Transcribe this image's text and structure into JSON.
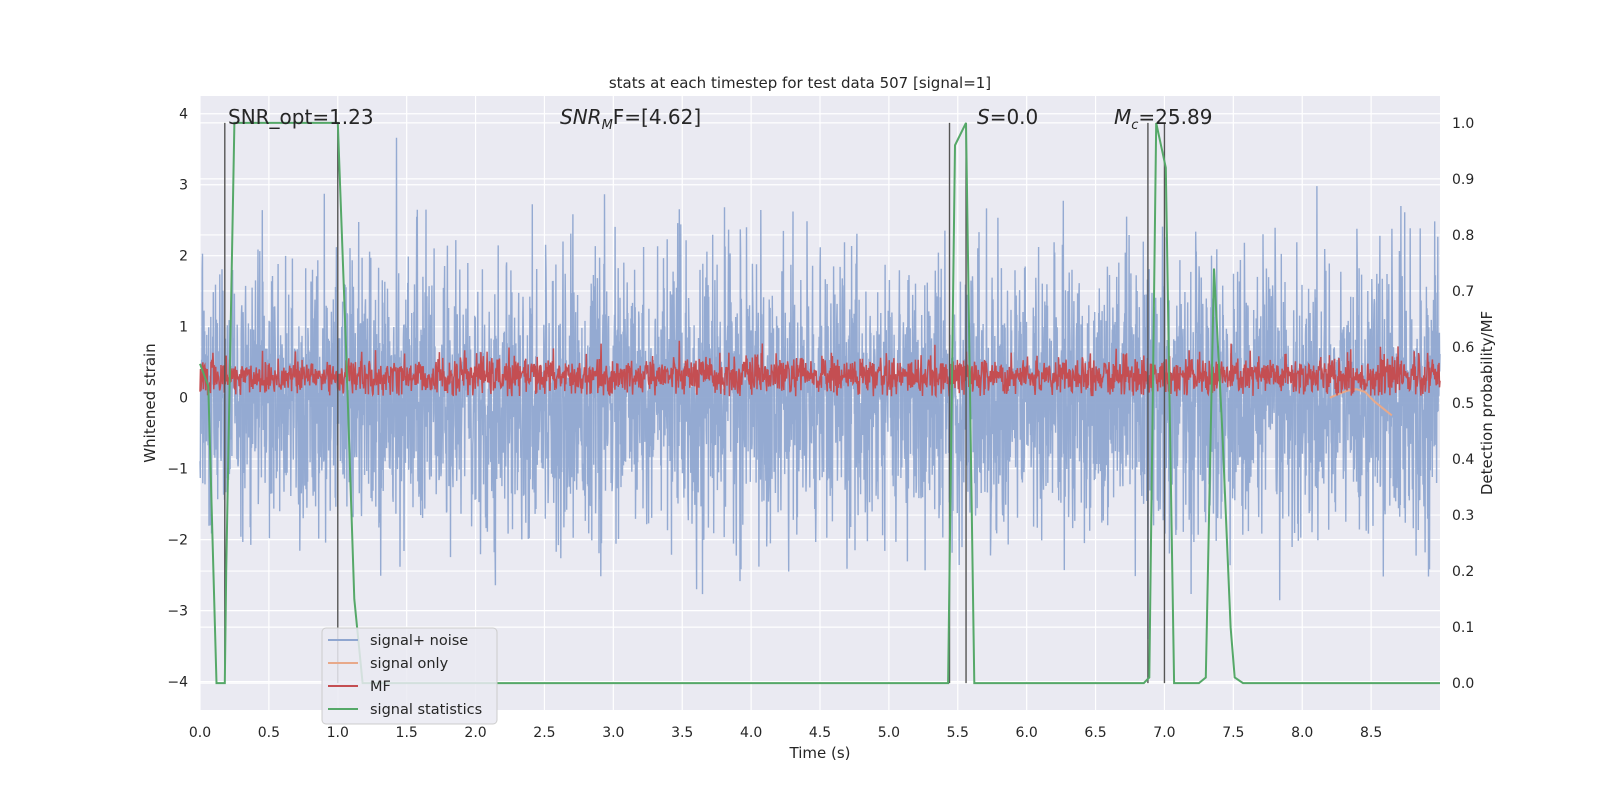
{
  "chart_data": {
    "type": "line",
    "title": "stats at each timestep for test data 507 [signal=1]",
    "xlabel": "Time (s)",
    "ylabel": "Whitened strain",
    "ylabel_right": "Detection probability/MF",
    "xlim": [
      0,
      9.0
    ],
    "ylim": [
      -4.4,
      4.25
    ],
    "ylim_right": [
      -0.048,
      1.048
    ],
    "x_ticks": [
      "0.0",
      "0.5",
      "1.0",
      "1.5",
      "2.0",
      "2.5",
      "3.0",
      "3.5",
      "4.0",
      "4.5",
      "5.0",
      "5.5",
      "6.0",
      "6.5",
      "7.0",
      "7.5",
      "8.0",
      "8.5"
    ],
    "x_tick_values": [
      0,
      0.5,
      1,
      1.5,
      2,
      2.5,
      3,
      3.5,
      4,
      4.5,
      5,
      5.5,
      6,
      6.5,
      7,
      7.5,
      8,
      8.5
    ],
    "y_ticks": [
      "4",
      "3",
      "2",
      "1",
      "0",
      "−1",
      "−2",
      "−3",
      "−4"
    ],
    "y_tick_values": [
      4,
      3,
      2,
      1,
      0,
      -1,
      -2,
      -3,
      -4
    ],
    "y_ticks_right": [
      "1.0",
      "0.9",
      "0.8",
      "0.7",
      "0.6",
      "0.5",
      "0.4",
      "0.3",
      "0.2",
      "0.1",
      "0.0"
    ],
    "y_tick_values_right": [
      1.0,
      0.9,
      0.8,
      0.7,
      0.6,
      0.5,
      0.4,
      0.3,
      0.2,
      0.1,
      0.0
    ],
    "grid": true,
    "legend_position": "lower-left",
    "annotations": [
      {
        "text": "SNR_opt=1.23",
        "x": 0.19,
        "y": 3.9
      },
      {
        "text": "SNR_MF=[4.62]",
        "x": 2.6,
        "y": 3.9
      },
      {
        "text": "S=0.0",
        "x": 5.6,
        "y": 3.9
      },
      {
        "text": "M_c=25.89",
        "x": 6.6,
        "y": 3.9
      }
    ],
    "annotation_parts": {
      "snr_opt": "SNR_opt=1.23",
      "snr_mf_main": "SNR",
      "snr_mf_sub": "M",
      "snr_mf_rest": "F=[4.62]",
      "s_main": "S",
      "s_rest": "=0.0",
      "mc_main": "M",
      "mc_sub": "c",
      "mc_rest": "=25.89"
    },
    "vlines": [
      0.18,
      1.0,
      5.44,
      5.56,
      6.88,
      7.0
    ],
    "series": [
      {
        "name": "signal+ noise",
        "color": "#8fa6d0",
        "kind": "noise",
        "amplitude_std": 0.95,
        "x_range": [
          0,
          9.0
        ]
      },
      {
        "name": "signal only",
        "color": "#e8a98a",
        "kind": "signal",
        "x_range": [
          8.2,
          8.65
        ],
        "values_y": [
          0.0,
          0.05,
          0.1,
          0.12,
          0.08,
          -0.05,
          -0.15,
          -0.25
        ]
      },
      {
        "name": "MF",
        "color": "#c44e52",
        "kind": "mf",
        "mean": 0.3,
        "x_range": [
          0,
          9.0
        ]
      },
      {
        "name": "signal statistics",
        "color": "#55a868",
        "kind": "prob",
        "x": [
          0,
          0.06,
          0.12,
          0.18,
          0.19,
          0.25,
          0.3,
          0.4,
          0.6,
          0.8,
          1.0,
          1.06,
          1.12,
          1.18,
          1.25,
          5.43,
          5.48,
          5.56,
          5.62,
          6.85,
          6.89,
          6.94,
          7.01,
          7.07,
          7.25,
          7.3,
          7.36,
          7.42,
          7.48,
          7.51,
          7.57,
          9.0
        ],
        "y": [
          0.57,
          0.53,
          0.0,
          0.0,
          0.2,
          1.0,
          1.0,
          1.0,
          1.0,
          1.0,
          1.0,
          0.6,
          0.15,
          0.0,
          0.0,
          0.0,
          0.96,
          1.0,
          0.0,
          0.0,
          0.01,
          1.0,
          0.92,
          0.0,
          0.0,
          0.01,
          0.74,
          0.45,
          0.1,
          0.01,
          0.0,
          0.0
        ]
      }
    ]
  }
}
